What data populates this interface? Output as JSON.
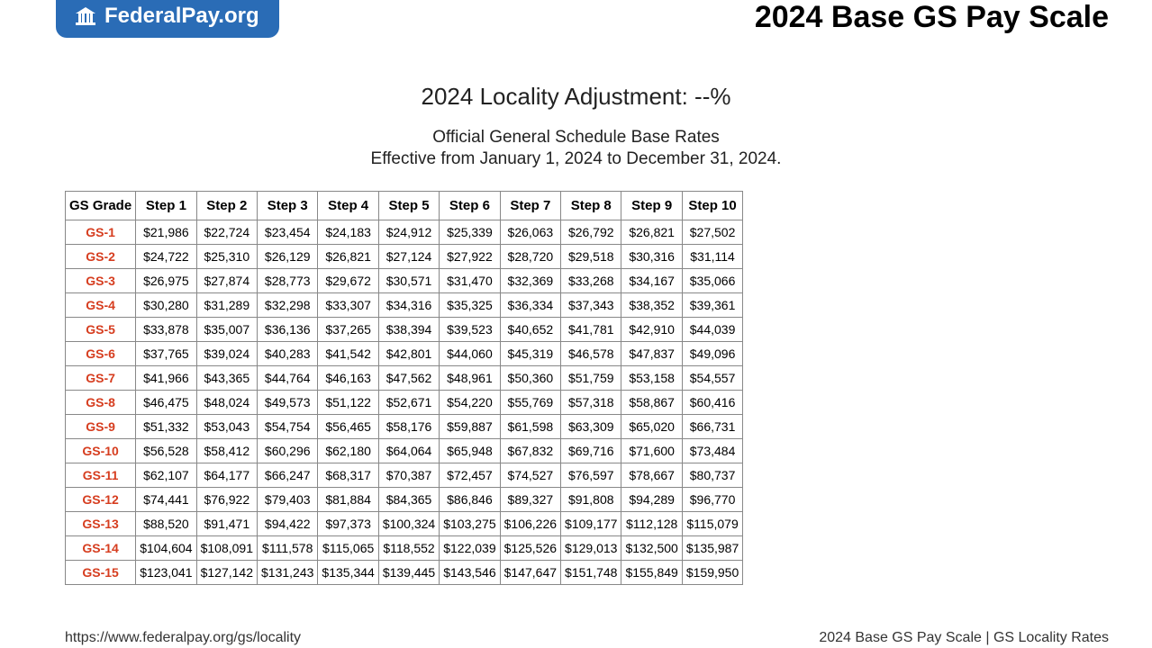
{
  "logo_text": "FederalPay.org",
  "page_title": "2024 Base GS Pay Scale",
  "subtitle1": "2024 Locality Adjustment: --%",
  "subtitle2": "Official General Schedule Base Rates",
  "subtitle3": "Effective from January 1, 2024 to December 31, 2024.",
  "footer_left": "https://www.federalpay.org/gs/locality",
  "footer_right": "2024 Base GS Pay Scale | GS Locality Rates",
  "table": {
    "columns": [
      "GS Grade",
      "Step 1",
      "Step 2",
      "Step 3",
      "Step 4",
      "Step 5",
      "Step 6",
      "Step 7",
      "Step 8",
      "Step 9",
      "Step 10"
    ],
    "rows": [
      [
        "GS-1",
        "$21,986",
        "$22,724",
        "$23,454",
        "$24,183",
        "$24,912",
        "$25,339",
        "$26,063",
        "$26,792",
        "$26,821",
        "$27,502"
      ],
      [
        "GS-2",
        "$24,722",
        "$25,310",
        "$26,129",
        "$26,821",
        "$27,124",
        "$27,922",
        "$28,720",
        "$29,518",
        "$30,316",
        "$31,114"
      ],
      [
        "GS-3",
        "$26,975",
        "$27,874",
        "$28,773",
        "$29,672",
        "$30,571",
        "$31,470",
        "$32,369",
        "$33,268",
        "$34,167",
        "$35,066"
      ],
      [
        "GS-4",
        "$30,280",
        "$31,289",
        "$32,298",
        "$33,307",
        "$34,316",
        "$35,325",
        "$36,334",
        "$37,343",
        "$38,352",
        "$39,361"
      ],
      [
        "GS-5",
        "$33,878",
        "$35,007",
        "$36,136",
        "$37,265",
        "$38,394",
        "$39,523",
        "$40,652",
        "$41,781",
        "$42,910",
        "$44,039"
      ],
      [
        "GS-6",
        "$37,765",
        "$39,024",
        "$40,283",
        "$41,542",
        "$42,801",
        "$44,060",
        "$45,319",
        "$46,578",
        "$47,837",
        "$49,096"
      ],
      [
        "GS-7",
        "$41,966",
        "$43,365",
        "$44,764",
        "$46,163",
        "$47,562",
        "$48,961",
        "$50,360",
        "$51,759",
        "$53,158",
        "$54,557"
      ],
      [
        "GS-8",
        "$46,475",
        "$48,024",
        "$49,573",
        "$51,122",
        "$52,671",
        "$54,220",
        "$55,769",
        "$57,318",
        "$58,867",
        "$60,416"
      ],
      [
        "GS-9",
        "$51,332",
        "$53,043",
        "$54,754",
        "$56,465",
        "$58,176",
        "$59,887",
        "$61,598",
        "$63,309",
        "$65,020",
        "$66,731"
      ],
      [
        "GS-10",
        "$56,528",
        "$58,412",
        "$60,296",
        "$62,180",
        "$64,064",
        "$65,948",
        "$67,832",
        "$69,716",
        "$71,600",
        "$73,484"
      ],
      [
        "GS-11",
        "$62,107",
        "$64,177",
        "$66,247",
        "$68,317",
        "$70,387",
        "$72,457",
        "$74,527",
        "$76,597",
        "$78,667",
        "$80,737"
      ],
      [
        "GS-12",
        "$74,441",
        "$76,922",
        "$79,403",
        "$81,884",
        "$84,365",
        "$86,846",
        "$89,327",
        "$91,808",
        "$94,289",
        "$96,770"
      ],
      [
        "GS-13",
        "$88,520",
        "$91,471",
        "$94,422",
        "$97,373",
        "$100,324",
        "$103,275",
        "$106,226",
        "$109,177",
        "$112,128",
        "$115,079"
      ],
      [
        "GS-14",
        "$104,604",
        "$108,091",
        "$111,578",
        "$115,065",
        "$118,552",
        "$122,039",
        "$125,526",
        "$129,013",
        "$132,500",
        "$135,987"
      ],
      [
        "GS-15",
        "$123,041",
        "$127,142",
        "$131,243",
        "$135,344",
        "$139,445",
        "$143,546",
        "$147,647",
        "$151,748",
        "$155,849",
        "$159,950"
      ]
    ],
    "grade_color": "#d63d1f",
    "border_color": "#888888",
    "header_fontsize": 15,
    "cell_fontsize": 14
  },
  "colors": {
    "logo_bg": "#2a6cb6",
    "logo_text": "#ffffff",
    "title": "#000000",
    "body_text": "#222222",
    "background": "#ffffff"
  }
}
